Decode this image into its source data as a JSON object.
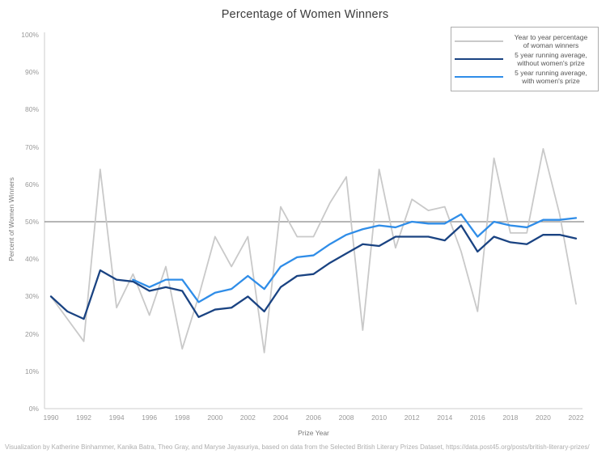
{
  "title": "Percentage of Women Winners",
  "caption": "Visualization by Katherine Binhammer, Kanika Batra, Theo Gray, and Maryse Jayasuriya, based on data from the Selected British Literary Prizes Dataset, https://data.post45.org/posts/british-literary-prizes/",
  "colors": {
    "axis_line": "#cccccc",
    "reference_line": "#8a8a8a",
    "tick_text": "#999999",
    "gray_series": "#c9c9c9",
    "dark_blue_series": "#1a4382",
    "light_blue_series": "#2f8de8"
  },
  "legend": {
    "items": [
      {
        "key": "year-to-year",
        "label_line1": "Year to year percentage",
        "label_line2": "of woman winners",
        "color": "#c9c9c9",
        "thickness": 2
      },
      {
        "key": "avg-without-womens-prize",
        "label_line1": "5 year running average,",
        "label_line2": "without women's prize",
        "color": "#1a4382",
        "thickness": 2.5
      },
      {
        "key": "avg-with-womens-prize",
        "label_line1": "5 year running average,",
        "label_line2": "with women's prize",
        "color": "#2f8de8",
        "thickness": 2.5
      }
    ]
  },
  "chart_data": {
    "type": "line",
    "title": "Percentage of Women Winners",
    "xlabel": "Prize Year",
    "ylabel": "Percent of Women Winners",
    "ylim": [
      0,
      100
    ],
    "grid": false,
    "legend_position": "top-right",
    "reference_line_y": 50,
    "x": [
      1990,
      1991,
      1992,
      1993,
      1994,
      1995,
      1996,
      1997,
      1998,
      1999,
      2000,
      2001,
      2002,
      2003,
      2004,
      2005,
      2006,
      2007,
      2008,
      2009,
      2010,
      2011,
      2012,
      2013,
      2014,
      2015,
      2016,
      2017,
      2018,
      2019,
      2020,
      2021,
      2022
    ],
    "x_ticks": [
      {
        "year": 1990,
        "label": "1990"
      },
      {
        "year": 1992,
        "label": "1992"
      },
      {
        "year": 1994,
        "label": "1994"
      },
      {
        "year": 1996,
        "label": "1996"
      },
      {
        "year": 1998,
        "label": "1998"
      },
      {
        "year": 2000,
        "label": "2000"
      },
      {
        "year": 2002,
        "label": "2002"
      },
      {
        "year": 2004,
        "label": "2004"
      },
      {
        "year": 2006,
        "label": "2006"
      },
      {
        "year": 2008,
        "label": "2008"
      },
      {
        "year": 2010,
        "label": "2010"
      },
      {
        "year": 2012,
        "label": "2012"
      },
      {
        "year": 2014,
        "label": "2014"
      },
      {
        "year": 2016,
        "label": "2016"
      },
      {
        "year": 2018,
        "label": "2018"
      },
      {
        "year": 2020,
        "label": "2020"
      },
      {
        "year": 2022,
        "label": "2022"
      }
    ],
    "y_ticks": [
      {
        "v": 0,
        "label": "0%"
      },
      {
        "v": 10,
        "label": "10%"
      },
      {
        "v": 20,
        "label": "20%"
      },
      {
        "v": 30,
        "label": "30%"
      },
      {
        "v": 40,
        "label": "40%"
      },
      {
        "v": 50,
        "label": "50%"
      },
      {
        "v": 60,
        "label": "60%"
      },
      {
        "v": 70,
        "label": "70%"
      },
      {
        "v": 80,
        "label": "80%"
      },
      {
        "v": 90,
        "label": "90%"
      },
      {
        "v": 100,
        "label": "100%"
      }
    ],
    "series": [
      {
        "key": "year-to-year",
        "name": "Year to year percentage of woman winners",
        "color": "#c9c9c9",
        "values": [
          30,
          24,
          18,
          64,
          27,
          36,
          25,
          38,
          16,
          30,
          46,
          38,
          46,
          15,
          54,
          46,
          46,
          55,
          62,
          21,
          64,
          43,
          56,
          53,
          54,
          42,
          26,
          67,
          47,
          47,
          69.5,
          52,
          28
        ]
      },
      {
        "key": "avg-without-womens-prize",
        "name": "5 year running average, without women's prize",
        "color": "#1a4382",
        "values": [
          30,
          26,
          24,
          37,
          34.5,
          34,
          31.5,
          32.5,
          31.5,
          24.5,
          26.5,
          27,
          30,
          26,
          32.5,
          35.5,
          36,
          39,
          41.5,
          44,
          43.5,
          46,
          46,
          46,
          45,
          49,
          42,
          46,
          44.5,
          44,
          46.5,
          46.5,
          45.5
        ]
      },
      {
        "key": "avg-with-womens-prize",
        "name": "5 year running average, with women's prize",
        "color": "#2f8de8",
        "values": [
          null,
          null,
          null,
          null,
          null,
          34.5,
          32.5,
          34.5,
          34.5,
          28.5,
          31,
          32,
          35.5,
          32,
          38,
          40.5,
          41,
          44,
          46.5,
          48,
          49,
          48.5,
          50,
          49.5,
          49.5,
          52,
          46,
          50,
          49,
          48.5,
          50.5,
          50.5,
          51
        ]
      }
    ]
  }
}
